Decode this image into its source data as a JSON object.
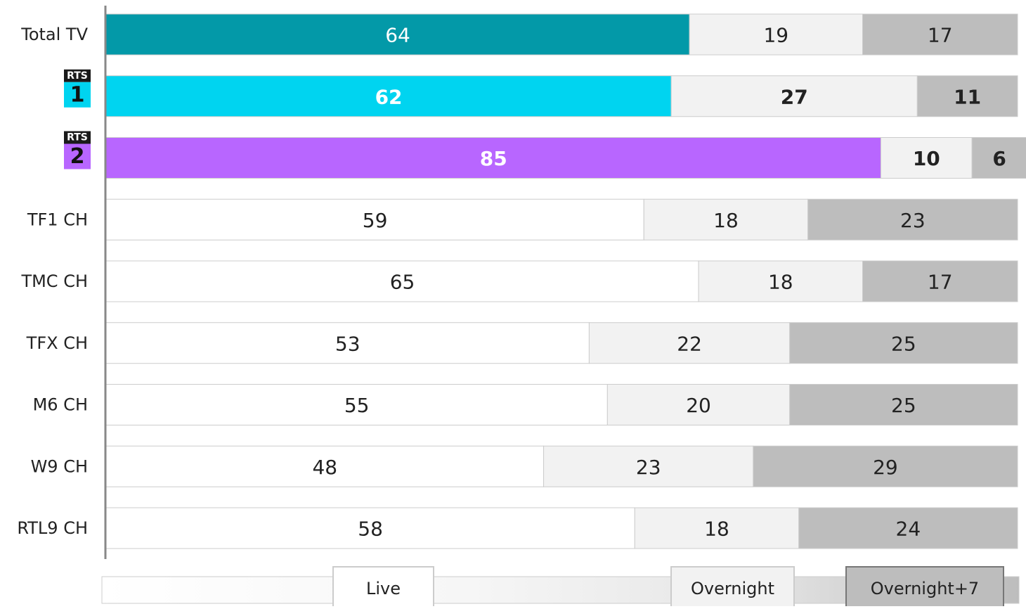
{
  "chart_data": {
    "type": "stacked-bar-horizontal",
    "categories": [
      "Total TV",
      null,
      null,
      "TF1 CH",
      "TMC CH",
      "TFX CH",
      "M6 CH",
      "W9 CH",
      "RTL9 CH"
    ],
    "logos": [
      null,
      {
        "brand": "RTS",
        "number": "1",
        "color": "#00d4f0"
      },
      {
        "brand": "RTS",
        "number": "2",
        "color": "#b866ff"
      },
      null,
      null,
      null,
      null,
      null,
      null
    ],
    "highlight": [
      false,
      true,
      true,
      false,
      false,
      false,
      false,
      false,
      false
    ],
    "xlim": [
      0,
      100
    ],
    "series": [
      {
        "name": "Live",
        "color": "#ffffff",
        "colors": [
          "#0399a8",
          "#00d4f0",
          "#b866ff",
          "#ffffff",
          "#ffffff",
          "#ffffff",
          "#ffffff",
          "#ffffff",
          "#ffffff"
        ],
        "values": [
          64,
          62,
          85,
          59,
          65,
          53,
          55,
          48,
          58
        ]
      },
      {
        "name": "Overnight",
        "color": "#f2f2f2",
        "values": [
          19,
          27,
          10,
          18,
          18,
          22,
          20,
          23,
          18
        ]
      },
      {
        "name": "Overnight+7",
        "color": "#bdbdbd",
        "values": [
          17,
          11,
          6,
          23,
          17,
          25,
          25,
          29,
          24
        ]
      }
    ]
  }
}
